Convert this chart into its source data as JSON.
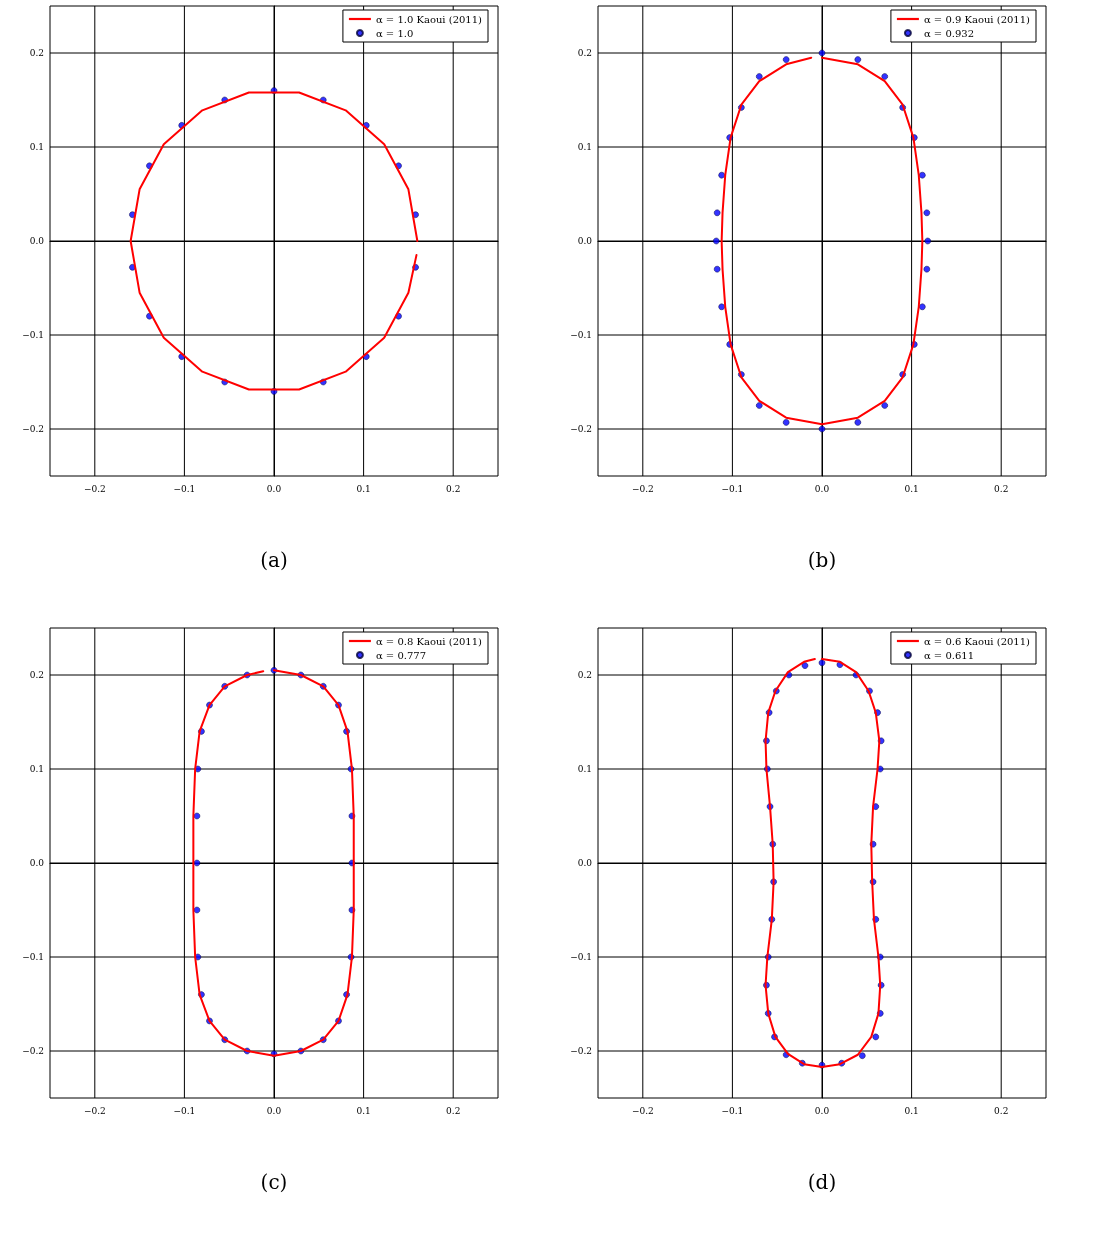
{
  "chart_data": [
    {
      "type": "line",
      "xlim": [
        -0.25,
        0.25
      ],
      "ylim": [
        -0.25,
        0.25
      ],
      "xticks": [
        {
          "value": -0.2,
          "label": "−0.2"
        },
        {
          "value": -0.1,
          "label": "−0.1"
        },
        {
          "value": 0,
          "label": "0.0"
        },
        {
          "value": 0.1,
          "label": "0.1"
        },
        {
          "value": 0.2,
          "label": "0.2"
        }
      ],
      "yticks": [
        {
          "value": -0.2,
          "label": "−0.2"
        },
        {
          "value": -0.1,
          "label": "−0.1"
        },
        {
          "value": 0,
          "label": "0.0"
        },
        {
          "value": 0.1,
          "label": "0.1"
        },
        {
          "value": 0.2,
          "label": "0.2"
        }
      ],
      "grid": true,
      "legend": "top right",
      "annotations": [
        "(a)"
      ],
      "series": [
        {
          "name": "α = 1.0 Kaoui (2011)",
          "type": "line",
          "color": "#ff0000",
          "x": [
            0.16,
            0.15,
            0.123,
            0.08,
            0.028,
            -0.028,
            -0.08,
            -0.123,
            -0.15,
            -0.16,
            -0.15,
            -0.123,
            -0.08,
            -0.028,
            0.028,
            0.08,
            0.123,
            0.15,
            0.159
          ],
          "values": [
            0,
            0.055,
            0.103,
            0.139,
            0.158,
            0.158,
            0.139,
            0.103,
            0.055,
            0,
            -0.055,
            -0.103,
            -0.139,
            -0.158,
            -0.158,
            -0.139,
            -0.103,
            -0.055,
            -0.015
          ]
        },
        {
          "name": "α = 1.0",
          "type": "scatter",
          "color": "#0000ff",
          "marker": "circle",
          "x": [
            0.158,
            0.139,
            0.103,
            0.055,
            0,
            -0.055,
            -0.103,
            -0.139,
            -0.158,
            -0.158,
            -0.139,
            -0.103,
            -0.055,
            0,
            0.055,
            0.103,
            0.139,
            0.158
          ],
          "values": [
            0.028,
            0.08,
            0.123,
            0.15,
            0.16,
            0.15,
            0.123,
            0.08,
            0.028,
            -0.028,
            -0.08,
            -0.123,
            -0.15,
            -0.16,
            -0.15,
            -0.123,
            -0.08,
            -0.028
          ]
        }
      ]
    },
    {
      "type": "line",
      "xlim": [
        -0.25,
        0.25
      ],
      "ylim": [
        -0.25,
        0.25
      ],
      "xticks": [
        {
          "value": -0.2,
          "label": "−0.2"
        },
        {
          "value": -0.1,
          "label": "−0.1"
        },
        {
          "value": 0,
          "label": "0.0"
        },
        {
          "value": 0.1,
          "label": "0.1"
        },
        {
          "value": 0.2,
          "label": "0.2"
        }
      ],
      "yticks": [
        {
          "value": -0.2,
          "label": "−0.2"
        },
        {
          "value": -0.1,
          "label": "−0.1"
        },
        {
          "value": 0,
          "label": "0.0"
        },
        {
          "value": 0.1,
          "label": "0.1"
        },
        {
          "value": 0.2,
          "label": "0.2"
        }
      ],
      "grid": true,
      "legend": "top right",
      "annotations": [
        "(b)"
      ],
      "series": [
        {
          "name": "α = 0.9 Kaoui (2011)",
          "type": "line",
          "color": "#ff0000",
          "x": [
            0,
            0.04,
            0.07,
            0.09,
            0.102,
            0.108,
            0.111,
            0.112,
            0.111,
            0.108,
            0.102,
            0.09,
            0.07,
            0.04,
            0,
            -0.04,
            -0.07,
            -0.09,
            -0.102,
            -0.108,
            -0.111,
            -0.112,
            -0.111,
            -0.108,
            -0.102,
            -0.09,
            -0.07,
            -0.04,
            -0.012
          ],
          "values": [
            0.195,
            0.188,
            0.17,
            0.145,
            0.11,
            0.07,
            0.03,
            0,
            -0.03,
            -0.07,
            -0.11,
            -0.145,
            -0.17,
            -0.188,
            -0.195,
            -0.188,
            -0.17,
            -0.145,
            -0.11,
            -0.07,
            -0.03,
            0,
            0.03,
            0.07,
            0.11,
            0.145,
            0.17,
            0.188,
            0.195
          ]
        },
        {
          "name": "α = 0.932",
          "type": "scatter",
          "color": "#0000ff",
          "marker": "circle",
          "x": [
            0,
            0.04,
            0.07,
            0.09,
            0.103,
            0.112,
            0.117,
            0.118,
            0.117,
            0.112,
            0.103,
            0.09,
            0.07,
            0.04,
            0,
            -0.04,
            -0.07,
            -0.09,
            -0.103,
            -0.112,
            -0.117,
            -0.118,
            -0.117,
            -0.112,
            -0.103,
            -0.09,
            -0.07,
            -0.04
          ],
          "values": [
            0.2,
            0.193,
            0.175,
            0.142,
            0.11,
            0.07,
            0.03,
            0,
            -0.03,
            -0.07,
            -0.11,
            -0.142,
            -0.175,
            -0.193,
            -0.2,
            -0.193,
            -0.175,
            -0.142,
            -0.11,
            -0.07,
            -0.03,
            0,
            0.03,
            0.07,
            0.11,
            0.142,
            0.175,
            0.193
          ]
        }
      ]
    },
    {
      "type": "line",
      "xlim": [
        -0.25,
        0.25
      ],
      "ylim": [
        -0.25,
        0.25
      ],
      "xticks": [
        {
          "value": -0.2,
          "label": "−0.2"
        },
        {
          "value": -0.1,
          "label": "−0.1"
        },
        {
          "value": 0,
          "label": "0.0"
        },
        {
          "value": 0.1,
          "label": "0.1"
        },
        {
          "value": 0.2,
          "label": "0.2"
        }
      ],
      "yticks": [
        {
          "value": -0.2,
          "label": "−0.2"
        },
        {
          "value": -0.1,
          "label": "−0.1"
        },
        {
          "value": 0,
          "label": "0.0"
        },
        {
          "value": 0.1,
          "label": "0.1"
        },
        {
          "value": 0.2,
          "label": "0.2"
        }
      ],
      "grid": true,
      "legend": "top right",
      "annotations": [
        "(c)"
      ],
      "series": [
        {
          "name": "α = 0.8 Kaoui (2011)",
          "type": "line",
          "color": "#ff0000",
          "x": [
            0,
            0.03,
            0.055,
            0.072,
            0.082,
            0.087,
            0.089,
            0.089,
            0.089,
            0.087,
            0.082,
            0.072,
            0.055,
            0.03,
            0,
            -0.03,
            -0.055,
            -0.072,
            -0.083,
            -0.088,
            -0.09,
            -0.09,
            -0.09,
            -0.088,
            -0.083,
            -0.072,
            -0.055,
            -0.03,
            -0.012
          ],
          "values": [
            0.205,
            0.2,
            0.188,
            0.168,
            0.14,
            0.1,
            0.05,
            0,
            -0.05,
            -0.1,
            -0.14,
            -0.168,
            -0.188,
            -0.2,
            -0.205,
            -0.2,
            -0.188,
            -0.168,
            -0.14,
            -0.1,
            -0.05,
            0,
            0.05,
            0.1,
            0.14,
            0.168,
            0.188,
            0.2,
            0.204
          ]
        },
        {
          "name": "α = 0.777",
          "type": "scatter",
          "color": "#0000ff",
          "marker": "circle",
          "x": [
            0,
            0.03,
            0.055,
            0.072,
            0.081,
            0.086,
            0.087,
            0.087,
            0.087,
            0.086,
            0.081,
            0.072,
            0.055,
            0.03,
            0,
            -0.03,
            -0.055,
            -0.072,
            -0.081,
            -0.085,
            -0.086,
            -0.086,
            -0.086,
            -0.085,
            -0.081,
            -0.072,
            -0.055,
            -0.03
          ],
          "values": [
            0.205,
            0.2,
            0.188,
            0.168,
            0.14,
            0.1,
            0.05,
            0,
            -0.05,
            -0.1,
            -0.14,
            -0.168,
            -0.188,
            -0.2,
            -0.203,
            -0.2,
            -0.188,
            -0.168,
            -0.14,
            -0.1,
            -0.05,
            0,
            0.05,
            0.1,
            0.14,
            0.168,
            0.188,
            0.2
          ]
        }
      ]
    },
    {
      "type": "line",
      "xlim": [
        -0.25,
        0.25
      ],
      "ylim": [
        -0.25,
        0.25
      ],
      "xticks": [
        {
          "value": -0.2,
          "label": "−0.2"
        },
        {
          "value": -0.1,
          "label": "−0.1"
        },
        {
          "value": 0,
          "label": "0.0"
        },
        {
          "value": 0.1,
          "label": "0.1"
        },
        {
          "value": 0.2,
          "label": "0.2"
        }
      ],
      "yticks": [
        {
          "value": -0.2,
          "label": "−0.2"
        },
        {
          "value": -0.1,
          "label": "−0.1"
        },
        {
          "value": 0,
          "label": "0.0"
        },
        {
          "value": 0.1,
          "label": "0.1"
        },
        {
          "value": 0.2,
          "label": "0.2"
        }
      ],
      "grid": true,
      "legend": "top right",
      "annotations": [
        "(d)"
      ],
      "series": [
        {
          "name": "α = 0.6 Kaoui (2011)",
          "type": "line",
          "color": "#ff0000",
          "x": [
            0,
            0.02,
            0.038,
            0.052,
            0.06,
            0.064,
            0.062,
            0.057,
            0.055,
            0.056,
            0.058,
            0.063,
            0.065,
            0.063,
            0.055,
            0.04,
            0.02,
            0,
            -0.02,
            -0.038,
            -0.052,
            -0.06,
            -0.063,
            -0.061,
            -0.056,
            -0.054,
            -0.055,
            -0.058,
            -0.062,
            -0.063,
            -0.06,
            -0.052,
            -0.038,
            -0.02,
            -0.008
          ],
          "values": [
            0.217,
            0.214,
            0.203,
            0.183,
            0.16,
            0.13,
            0.1,
            0.06,
            0.02,
            -0.02,
            -0.06,
            -0.1,
            -0.13,
            -0.16,
            -0.185,
            -0.204,
            -0.214,
            -0.217,
            -0.214,
            -0.203,
            -0.185,
            -0.16,
            -0.13,
            -0.1,
            -0.06,
            -0.02,
            0.02,
            0.06,
            0.1,
            0.13,
            0.16,
            0.183,
            0.203,
            0.214,
            0.217
          ]
        },
        {
          "name": "α = 0.611",
          "type": "scatter",
          "color": "#0000ff",
          "marker": "circle",
          "x": [
            0,
            0.02,
            0.038,
            0.053,
            0.062,
            0.066,
            0.065,
            0.06,
            0.057,
            0.057,
            0.06,
            0.065,
            0.066,
            0.065,
            0.06,
            0.045,
            0.022,
            0,
            -0.022,
            -0.04,
            -0.053,
            -0.06,
            -0.062,
            -0.06,
            -0.056,
            -0.054,
            -0.055,
            -0.058,
            -0.061,
            -0.062,
            -0.059,
            -0.051,
            -0.037,
            -0.019
          ],
          "values": [
            0.213,
            0.211,
            0.2,
            0.183,
            0.16,
            0.13,
            0.1,
            0.06,
            0.02,
            -0.02,
            -0.06,
            -0.1,
            -0.13,
            -0.16,
            -0.185,
            -0.205,
            -0.213,
            -0.215,
            -0.213,
            -0.204,
            -0.185,
            -0.16,
            -0.13,
            -0.1,
            -0.06,
            -0.02,
            0.02,
            0.06,
            0.1,
            0.13,
            0.16,
            0.183,
            0.2,
            0.21
          ]
        }
      ]
    }
  ]
}
